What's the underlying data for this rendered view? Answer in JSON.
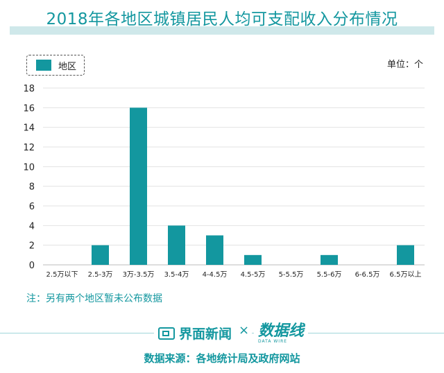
{
  "title": "2018年各地区城镇居民人均可支配收入分布情况",
  "legend": {
    "label": "地区"
  },
  "unit": "单位：个",
  "note": "注：另有两个地区暂未公布数据",
  "footer": {
    "brand_jiemian": "界面新闻",
    "times": "×",
    "brand_shujuxian": "数据线",
    "brand_shujuxian_sub": "DATA WIRE",
    "source": "数据来源：各地统计局及政府网站"
  },
  "colors": {
    "accent": "#13979f",
    "title_bar": "#cfe8ea"
  },
  "chart_data": {
    "type": "bar",
    "categories": [
      "2.5万以下",
      "2.5-3万",
      "3万-3.5万",
      "3.5-4万",
      "4-4.5万",
      "4.5-5万",
      "5-5.5万",
      "5.5-6万",
      "6-6.5万",
      "6.5万以上"
    ],
    "series": [
      {
        "name": "地区",
        "values": [
          0,
          2,
          16,
          4,
          3,
          1,
          0,
          1,
          0,
          2
        ]
      }
    ],
    "ylim": [
      0,
      18
    ],
    "yticks": [
      0,
      2,
      4,
      6,
      8,
      10,
      12,
      14,
      16,
      18
    ],
    "grid": true,
    "legend": "top-left"
  }
}
